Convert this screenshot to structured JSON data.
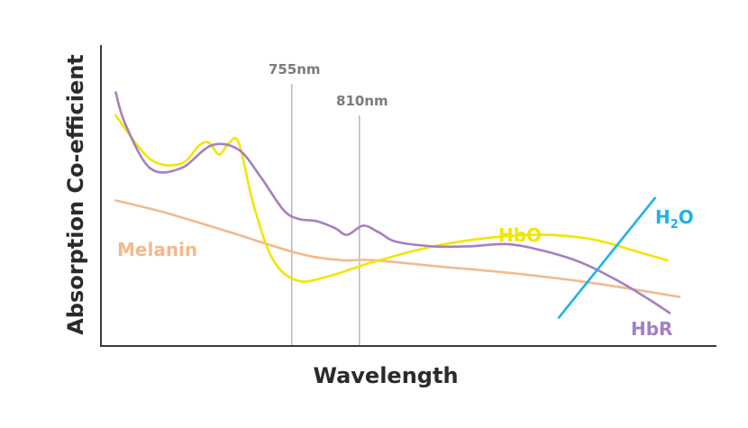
{
  "chart_data": {
    "type": "line",
    "title": "",
    "xlabel": "Wavelength",
    "ylabel": "Absorption Co-efficient",
    "xlim": [
      600,
      1100
    ],
    "ylim": [
      0,
      10
    ],
    "grid": false,
    "legend": "inline-labels",
    "markers": [
      {
        "label": "755nm",
        "x": 755
      },
      {
        "label": "810nm",
        "x": 810
      }
    ],
    "series": [
      {
        "name": "HbO",
        "label_main": "HbO",
        "label_sub": "",
        "color": "#f2e600",
        "x": [
          612,
          640,
          665,
          680,
          688,
          696,
          704,
          712,
          724,
          740,
          760,
          785,
          820,
          870,
          920,
          960,
          1000,
          1040,
          1060
        ],
        "y": [
          8.9,
          7.0,
          6.8,
          7.6,
          7.7,
          7.2,
          7.7,
          7.7,
          5.0,
          2.6,
          1.7,
          1.9,
          2.5,
          3.2,
          3.6,
          3.7,
          3.5,
          2.9,
          2.6
        ]
      },
      {
        "name": "HbR",
        "label_main": "HbR",
        "label_sub": "",
        "color": "#a57fc0",
        "x": [
          612,
          620,
          640,
          665,
          690,
          712,
          730,
          748,
          760,
          775,
          790,
          800,
          813,
          826,
          840,
          870,
          900,
          930,
          960,
          990,
          1020,
          1045,
          1062
        ],
        "y": [
          9.9,
          8.5,
          6.6,
          6.6,
          7.6,
          7.4,
          6.2,
          4.8,
          4.4,
          4.3,
          4.0,
          3.7,
          4.1,
          3.8,
          3.4,
          3.2,
          3.2,
          3.3,
          3.0,
          2.5,
          1.7,
          0.9,
          0.3
        ]
      },
      {
        "name": "Melanin",
        "label_main": "Melanin",
        "label_sub": "",
        "color": "#f4b98a",
        "x": [
          612,
          650,
          700,
          760,
          795,
          820,
          880,
          940,
          1000,
          1070
        ],
        "y": [
          5.2,
          4.7,
          3.9,
          2.9,
          2.6,
          2.6,
          2.3,
          2.0,
          1.6,
          1.0
        ]
      },
      {
        "name": "H2O",
        "label_main": "H",
        "label_sub": "2",
        "label_end": "O",
        "color": "#1bb3e6",
        "x": [
          972,
          1050
        ],
        "y": [
          0.1,
          5.3
        ]
      }
    ]
  }
}
